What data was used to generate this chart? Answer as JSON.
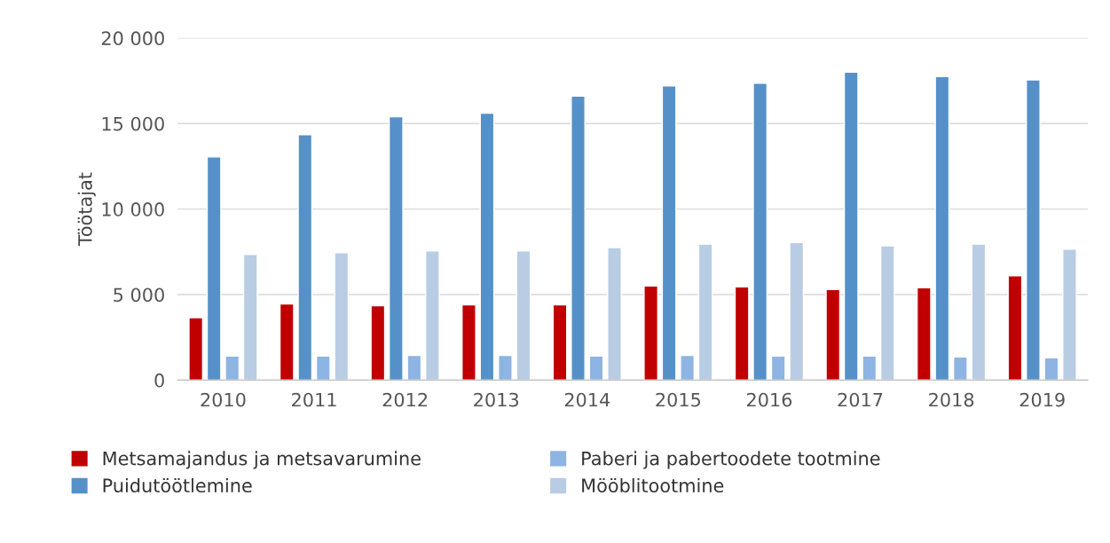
{
  "chart_data": {
    "type": "bar",
    "ylabel": "Töötajat",
    "categories": [
      "2010",
      "2011",
      "2012",
      "2013",
      "2014",
      "2015",
      "2016",
      "2017",
      "2018",
      "2019"
    ],
    "series": [
      {
        "name": "Metsamajandus ja metsavarumine",
        "color": "#c00000",
        "values": [
          3650,
          4450,
          4350,
          4400,
          4400,
          5500,
          5450,
          5300,
          5400,
          6100
        ]
      },
      {
        "name": "Puidutöötlemine",
        "color": "#5591c8",
        "values": [
          13050,
          14350,
          15400,
          15600,
          16600,
          17200,
          17350,
          18000,
          17750,
          17550
        ]
      },
      {
        "name": "Paberi ja pabertoodete tootmine",
        "color": "#8db4e2",
        "values": [
          1400,
          1400,
          1450,
          1450,
          1400,
          1450,
          1400,
          1400,
          1350,
          1300
        ]
      },
      {
        "name": "Mööblitootmine",
        "color": "#b8cce4",
        "values": [
          7350,
          7450,
          7550,
          7550,
          7750,
          7950,
          8050,
          7850,
          7950,
          7650
        ]
      }
    ],
    "ylim": [
      0,
      20000
    ],
    "yticks": [
      {
        "value": 0,
        "label": "0"
      },
      {
        "value": 5000,
        "label": "5 000"
      },
      {
        "value": 10000,
        "label": "10 000"
      },
      {
        "value": 15000,
        "label": "15 000"
      },
      {
        "value": 20000,
        "label": "20 000"
      }
    ],
    "grid": "y",
    "legend": "bottom"
  }
}
